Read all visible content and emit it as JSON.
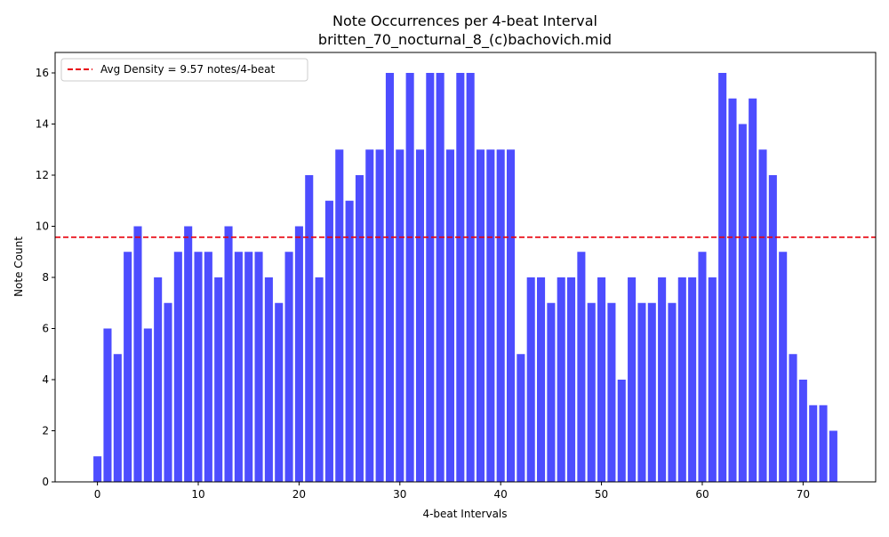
{
  "chart_data": {
    "type": "bar",
    "title": "Note Occurrences per 4-beat Interval",
    "subtitle": "britten_70_nocturnal_8_(c)bachovich.mid",
    "xlabel": "4-beat Intervals",
    "ylabel": "Note Count",
    "x": [
      0,
      1,
      2,
      3,
      4,
      5,
      6,
      7,
      8,
      9,
      10,
      11,
      12,
      13,
      14,
      15,
      16,
      17,
      18,
      19,
      20,
      21,
      22,
      23,
      24,
      25,
      26,
      27,
      28,
      29,
      30,
      31,
      32,
      33,
      34,
      35,
      36,
      37,
      38,
      39,
      40,
      41,
      42,
      43,
      44,
      45,
      46,
      47,
      48,
      49,
      50,
      51,
      52,
      53,
      54,
      55,
      56,
      57,
      58,
      59,
      60,
      61,
      62,
      63,
      64,
      65,
      66,
      67,
      68,
      69,
      70,
      71,
      72,
      73
    ],
    "values": [
      1,
      6,
      5,
      9,
      10,
      6,
      8,
      7,
      9,
      10,
      9,
      9,
      8,
      10,
      9,
      9,
      9,
      8,
      7,
      9,
      10,
      12,
      8,
      11,
      13,
      11,
      12,
      13,
      13,
      16,
      13,
      16,
      13,
      16,
      16,
      13,
      16,
      16,
      13,
      13,
      13,
      13,
      5,
      8,
      8,
      7,
      8,
      8,
      9,
      7,
      8,
      7,
      4,
      8,
      7,
      7,
      8,
      7,
      8,
      8,
      9,
      8,
      16,
      15,
      14,
      15,
      13,
      12,
      9,
      5,
      4,
      3,
      3,
      2
    ],
    "xlim": [
      -4.2,
      77.2
    ],
    "ylim": [
      0,
      16.8
    ],
    "xticks": [
      0,
      10,
      20,
      30,
      40,
      50,
      60,
      70
    ],
    "yticks": [
      0,
      2,
      4,
      6,
      8,
      10,
      12,
      14,
      16
    ],
    "bar_color": "#4d4dff",
    "grid": false,
    "legend_position": "top-left",
    "average_line": {
      "label": "Avg Density = 9.57 notes/4-beat",
      "value": 9.57,
      "color": "#e8000b",
      "style": "dashed"
    }
  }
}
